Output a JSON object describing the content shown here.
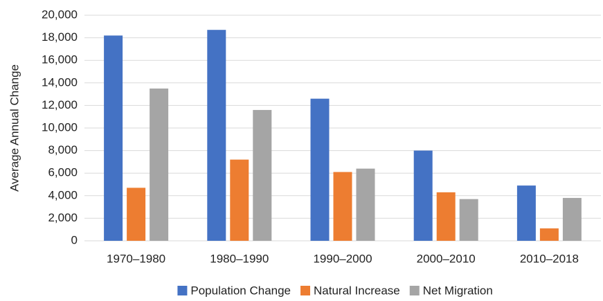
{
  "chart_data": {
    "type": "bar",
    "y_label": "Average Annual Change",
    "categories": [
      "1970–1980",
      "1980–1990",
      "1990–2000",
      "2000–2010",
      "2010–2018"
    ],
    "series": [
      {
        "name": "Population Change",
        "color": "#4472c4",
        "values": [
          18200,
          18700,
          12600,
          8000,
          4900
        ]
      },
      {
        "name": "Natural Increase",
        "color": "#ed7d31",
        "values": [
          4700,
          7200,
          6100,
          4300,
          1100
        ]
      },
      {
        "name": "Net Migration",
        "color": "#a5a5a5",
        "values": [
          13500,
          11600,
          6400,
          3700,
          3800
        ]
      }
    ],
    "ylim": [
      0,
      20000
    ],
    "yticks": [
      0,
      {
        "value": 2000,
        "label": "2,000"
      },
      {
        "value": 4000,
        "label": "4,000"
      },
      {
        "value": 6000,
        "label": "6,000"
      },
      {
        "value": 8000,
        "label": "8,000"
      },
      {
        "value": 10000,
        "label": "10,000"
      },
      {
        "value": 12000,
        "label": "12,000"
      },
      {
        "value": 14000,
        "label": "14,000"
      },
      {
        "value": 16000,
        "label": "16,000"
      },
      {
        "value": 18000,
        "label": "18,000"
      },
      {
        "value": 20000,
        "label": "20,000"
      }
    ],
    "grid": true,
    "legend": "bottom"
  }
}
